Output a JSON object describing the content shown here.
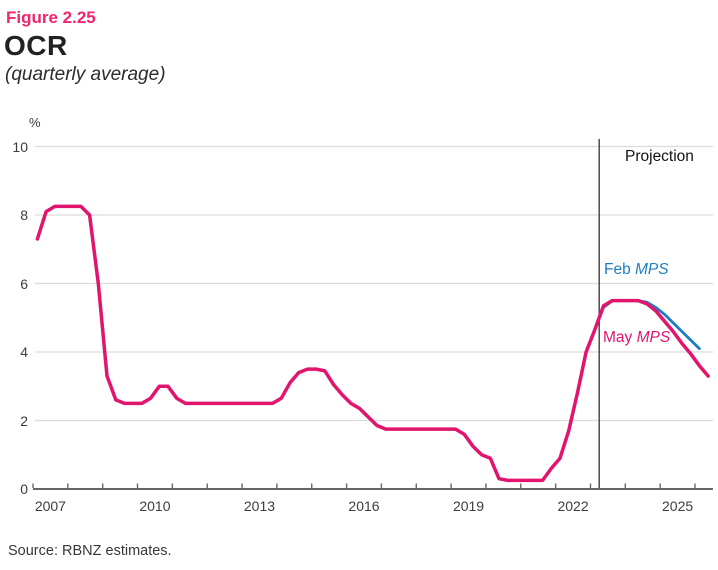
{
  "figure": {
    "number": "Figure 2.25",
    "title": "OCR",
    "subtitle": "(quarterly average)"
  },
  "source": "Source: RBNZ estimates.",
  "colors": {
    "accent_pink": "#f2256d",
    "may_line": "#e1146e",
    "feb_line": "#1b7ec4",
    "axis": "#666666",
    "grid": "#dcdcdc",
    "tick_text": "#3d3d3d",
    "projection_line": "#2f2f2f"
  },
  "annotations": {
    "projection": "Projection",
    "feb_prefix": "Feb ",
    "feb_suffix": "MPS",
    "may_prefix": "May ",
    "may_suffix": "MPS"
  },
  "chart_data": {
    "type": "line",
    "title": "OCR",
    "subtitle": "(quarterly average)",
    "unit_label": "%",
    "ylabel": "%",
    "xlabel": "",
    "ylim": [
      0,
      10
    ],
    "y_ticks": [
      0,
      2,
      4,
      6,
      8,
      10
    ],
    "x_first_tick_year": 2007,
    "x_last_tick_year": 2026,
    "x_end": 2026.5,
    "x_tick_years_labeled": [
      2007,
      2010,
      2013,
      2016,
      2019,
      2022,
      2025
    ],
    "grid": true,
    "projection_boundary": 2023.25,
    "frequency": "quarterly",
    "series": [
      {
        "name": "Feb MPS",
        "color": "#1b7ec4",
        "start_year": 2023,
        "start_quarter": 1,
        "values": [
          4.65,
          5.3,
          5.5,
          5.5,
          5.5,
          5.5,
          5.45,
          5.3,
          5.1,
          4.85,
          4.6,
          4.35,
          4.1
        ]
      },
      {
        "name": "May MPS",
        "color": "#e1146e",
        "start_year": 2007,
        "start_quarter": 1,
        "values": [
          7.3,
          8.1,
          8.25,
          8.25,
          8.25,
          8.25,
          8.0,
          6.0,
          3.3,
          2.6,
          2.5,
          2.5,
          2.5,
          2.65,
          3.0,
          3.0,
          2.65,
          2.5,
          2.5,
          2.5,
          2.5,
          2.5,
          2.5,
          2.5,
          2.5,
          2.5,
          2.5,
          2.5,
          2.65,
          3.1,
          3.4,
          3.5,
          3.5,
          3.45,
          3.05,
          2.75,
          2.5,
          2.35,
          2.1,
          1.85,
          1.75,
          1.75,
          1.75,
          1.75,
          1.75,
          1.75,
          1.75,
          1.75,
          1.75,
          1.6,
          1.25,
          1.0,
          0.9,
          0.3,
          0.25,
          0.25,
          0.25,
          0.25,
          0.25,
          0.6,
          0.9,
          1.7,
          2.8,
          4.0,
          4.65,
          5.35,
          5.5,
          5.5,
          5.5,
          5.5,
          5.4,
          5.2,
          4.9,
          4.6,
          4.25,
          3.95,
          3.6,
          3.3
        ]
      }
    ]
  }
}
